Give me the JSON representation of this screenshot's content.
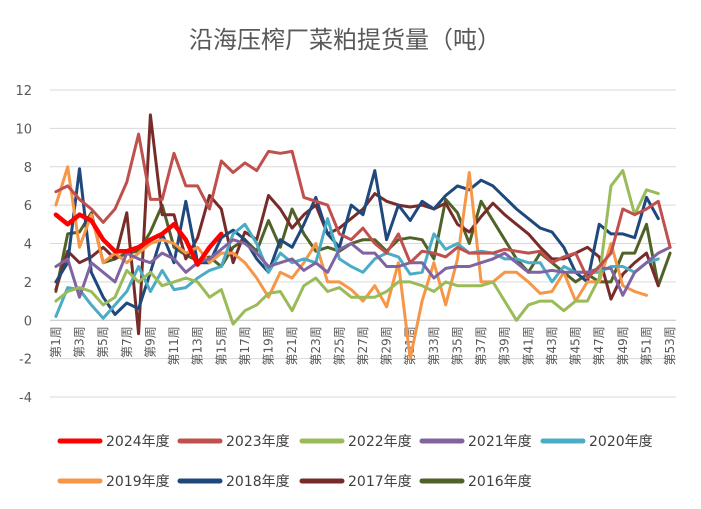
{
  "chart_data": {
    "type": "line",
    "title": "沿海压榨厂菜粕提货量（吨）",
    "xlabel": "",
    "ylabel": "",
    "ylim": [
      -4,
      12
    ],
    "yticks": [
      -4,
      -2,
      0,
      2,
      4,
      6,
      8,
      10,
      12
    ],
    "grid": true,
    "legend_position": "bottom",
    "categories": [
      "第1周",
      "第2周",
      "第3周",
      "第4周",
      "第5周",
      "第6周",
      "第7周",
      "第8周",
      "第9周",
      "第10周",
      "第11周",
      "第12周",
      "第13周",
      "第14周",
      "第15周",
      "第16周",
      "第17周",
      "第18周",
      "第19周",
      "第20周",
      "第21周",
      "第22周",
      "第23周",
      "第24周",
      "第25周",
      "第26周",
      "第27周",
      "第28周",
      "第29周",
      "第30周",
      "第31周",
      "第32周",
      "第33周",
      "第34周",
      "第35周",
      "第36周",
      "第37周",
      "第38周",
      "第39周",
      "第40周",
      "第41周",
      "第42周",
      "第43周",
      "第44周",
      "第45周",
      "第46周",
      "第47周",
      "第48周",
      "第49周",
      "第50周",
      "第51周",
      "第52周",
      "第53周"
    ],
    "xtick_labels": [
      "第1周",
      "第3周",
      "第5周",
      "第7周",
      "第9周",
      "第11周",
      "第13周",
      "第15周",
      "第17周",
      "第19周",
      "第21周",
      "第23周",
      "第25周",
      "第27周",
      "第29周",
      "第31周",
      "第33周",
      "第35周",
      "第37周",
      "第39周",
      "第41周",
      "第43周",
      "第45周",
      "第47周",
      "第49周",
      "第51周",
      "第53周"
    ],
    "series": [
      {
        "name": "2024年度",
        "color": "#ff0000",
        "width": 4.5,
        "values": [
          5.5,
          5.0,
          5.5,
          5.2,
          4.2,
          3.6,
          3.6,
          3.8,
          4.2,
          4.5,
          5.0,
          4.2,
          2.9,
          3.8,
          4.5,
          null,
          null,
          null,
          null,
          null,
          null,
          null,
          null,
          null,
          null,
          null,
          null,
          null,
          null,
          null,
          null,
          null,
          null,
          null,
          null,
          null,
          null,
          null,
          null,
          null,
          null,
          null,
          null,
          null,
          null,
          null,
          null,
          null,
          null,
          null,
          null,
          null,
          null
        ]
      },
      {
        "name": "2023年度",
        "color": "#c0504d",
        "width": 3,
        "values": [
          6.7,
          7.0,
          6.3,
          5.8,
          5.1,
          5.8,
          7.2,
          9.7,
          6.3,
          6.3,
          8.7,
          7.0,
          7.0,
          5.8,
          8.3,
          7.7,
          8.2,
          7.8,
          8.8,
          8.7,
          8.8,
          6.4,
          6.2,
          6.0,
          4.5,
          4.2,
          4.8,
          4.0,
          3.5,
          4.5,
          3.0,
          3.6,
          3.5,
          3.3,
          3.8,
          3.5,
          3.5,
          3.5,
          3.7,
          3.6,
          3.5,
          3.6,
          3.0,
          3.3,
          3.5,
          2.2,
          2.8,
          3.5,
          5.8,
          5.5,
          5.8,
          6.2,
          3.8
        ]
      },
      {
        "name": "2022年度",
        "color": "#9bbb59",
        "width": 3,
        "values": [
          1.0,
          1.5,
          1.7,
          1.5,
          0.8,
          1.2,
          2.6,
          2.0,
          2.5,
          1.8,
          2.0,
          2.2,
          2.0,
          1.2,
          1.6,
          -0.2,
          0.5,
          0.8,
          1.4,
          1.5,
          0.5,
          1.8,
          2.2,
          1.5,
          1.7,
          1.2,
          1.2,
          1.2,
          1.5,
          2.0,
          2.0,
          1.8,
          1.5,
          2.0,
          1.8,
          1.8,
          1.8,
          2.0,
          1.0,
          0.0,
          0.8,
          1.0,
          1.0,
          0.5,
          1.0,
          1.0,
          2.2,
          7.0,
          7.8,
          5.5,
          6.8,
          6.6,
          null
        ]
      },
      {
        "name": "2021年度",
        "color": "#8064a2",
        "width": 3,
        "values": [
          2.8,
          3.2,
          1.2,
          3.0,
          2.5,
          2.0,
          3.5,
          3.2,
          3.0,
          3.5,
          3.2,
          2.5,
          3.0,
          3.2,
          3.7,
          4.2,
          4.0,
          3.5,
          2.8,
          3.0,
          3.2,
          2.6,
          3.0,
          2.5,
          3.7,
          4.0,
          3.5,
          3.5,
          2.8,
          2.8,
          3.0,
          3.0,
          2.2,
          2.7,
          2.8,
          2.8,
          3.0,
          3.2,
          3.5,
          3.0,
          2.5,
          2.5,
          2.6,
          2.5,
          2.5,
          2.5,
          2.7,
          2.7,
          1.3,
          2.5,
          3.0,
          3.5,
          3.8
        ]
      },
      {
        "name": "2020年度",
        "color": "#4bacc6",
        "width": 3,
        "values": [
          0.2,
          1.7,
          1.6,
          0.8,
          0.1,
          0.8,
          1.5,
          2.8,
          1.5,
          2.6,
          1.6,
          1.7,
          2.2,
          2.6,
          2.8,
          4.5,
          5.0,
          4.0,
          2.5,
          3.5,
          3.0,
          3.2,
          3.0,
          5.3,
          3.2,
          2.8,
          2.5,
          3.2,
          3.5,
          3.3,
          2.4,
          2.5,
          4.5,
          3.7,
          4.0,
          3.5,
          3.6,
          3.5,
          3.2,
          3.2,
          3.0,
          3.0,
          2.0,
          2.8,
          2.5,
          2.5,
          2.5,
          2.8,
          2.8,
          2.5,
          3.0,
          3.2,
          null
        ]
      },
      {
        "name": "2019年度",
        "color": "#f79646",
        "width": 3,
        "values": [
          6.0,
          8.0,
          3.8,
          5.5,
          3.0,
          3.5,
          3.0,
          3.5,
          4.0,
          4.2,
          4.0,
          3.5,
          3.8,
          3.0,
          3.5,
          3.5,
          3.0,
          2.2,
          1.2,
          2.5,
          2.2,
          3.0,
          4.0,
          2.0,
          2.0,
          1.6,
          1.0,
          1.8,
          0.7,
          3.0,
          -2.0,
          1.0,
          3.0,
          0.8,
          3.2,
          7.7,
          2.0,
          2.0,
          2.5,
          2.5,
          2.0,
          1.4,
          1.5,
          2.5,
          1.0,
          2.0,
          2.0,
          4.0,
          1.8,
          1.5,
          1.3,
          null,
          null
        ]
      },
      {
        "name": "2018年度",
        "color": "#1f497d",
        "width": 3,
        "values": [
          2.0,
          3.0,
          7.9,
          2.5,
          1.2,
          0.3,
          0.9,
          0.6,
          2.5,
          4.5,
          3.0,
          6.2,
          3.0,
          3.0,
          4.3,
          4.7,
          4.2,
          3.2,
          2.5,
          4.2,
          3.8,
          5.0,
          6.4,
          4.5,
          3.8,
          6.0,
          5.5,
          7.8,
          4.2,
          6.0,
          5.2,
          6.2,
          5.8,
          6.5,
          7.0,
          6.8,
          7.3,
          7.0,
          6.4,
          5.8,
          5.3,
          4.8,
          4.6,
          3.8,
          2.5,
          2.0,
          5.0,
          4.5,
          4.5,
          4.3,
          6.4,
          5.3,
          null
        ]
      },
      {
        "name": "2017年度",
        "color": "#772c2a",
        "width": 3,
        "values": [
          1.6,
          3.6,
          3.0,
          3.3,
          3.8,
          3.2,
          5.6,
          -0.7,
          10.7,
          5.5,
          5.5,
          3.2,
          4.3,
          6.5,
          5.8,
          3.0,
          4.6,
          4.2,
          6.5,
          5.8,
          4.8,
          5.5,
          6.0,
          4.5,
          4.8,
          5.3,
          5.8,
          6.6,
          6.2,
          6.0,
          5.9,
          6.0,
          5.8,
          6.1,
          5.0,
          4.6,
          5.4,
          6.1,
          5.5,
          5.0,
          4.5,
          3.8,
          3.2,
          3.2,
          3.5,
          3.8,
          3.3,
          1.1,
          2.4,
          3.0,
          3.5,
          1.8,
          null
        ]
      },
      {
        "name": "2016年度",
        "color": "#4f6228",
        "width": 3,
        "values": [
          1.5,
          4.5,
          4.6,
          5.6,
          3.0,
          3.2,
          3.5,
          3.6,
          4.6,
          6.0,
          3.8,
          3.4,
          3.1,
          3.3,
          2.8,
          3.8,
          4.2,
          3.6,
          5.2,
          3.8,
          5.8,
          4.5,
          3.6,
          3.8,
          3.6,
          4.0,
          4.2,
          4.2,
          3.6,
          4.2,
          4.3,
          4.2,
          3.2,
          6.3,
          5.6,
          4.0,
          6.2,
          5.2,
          4.2,
          3.2,
          2.5,
          3.5,
          3.0,
          2.5,
          2.0,
          2.4,
          2.0,
          2.0,
          3.5,
          3.5,
          5.0,
          1.8,
          3.5
        ]
      }
    ]
  }
}
